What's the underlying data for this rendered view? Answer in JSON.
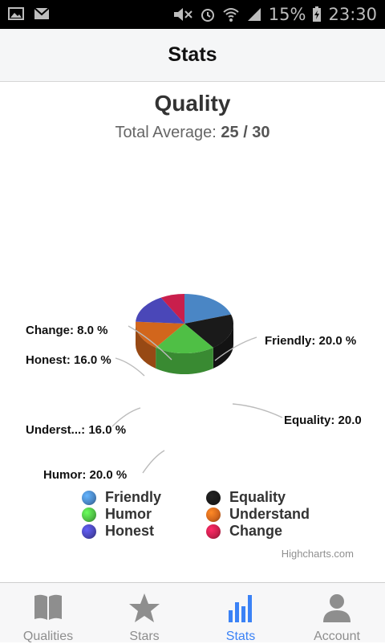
{
  "status_bar": {
    "battery": "15%",
    "time": "23:30"
  },
  "header": {
    "title": "Stats"
  },
  "chart_data": {
    "type": "pie",
    "title": "Quality",
    "subtitle_prefix": "Total Average: ",
    "subtitle_value": "25 / 30",
    "series": [
      {
        "name": "Friendly",
        "value": 20.0,
        "label": "Friendly: 20.0 %",
        "color": "#4a86c5"
      },
      {
        "name": "Equality",
        "value": 20.0,
        "label": "Equality: 20.0",
        "color": "#1a1a1a"
      },
      {
        "name": "Humor",
        "value": 20.0,
        "label": "Humor: 20.0 %",
        "color": "#4fbf45"
      },
      {
        "name": "Understand",
        "value": 16.0,
        "label": "Underst...: 16.0 %",
        "color": "#d2661c"
      },
      {
        "name": "Honest",
        "value": 16.0,
        "label": "Honest: 16.0 %",
        "color": "#4a47b8"
      },
      {
        "name": "Change",
        "value": 8.0,
        "label": "Change: 8.0 %",
        "color": "#c91f4c"
      }
    ],
    "credits": "Highcharts.com"
  },
  "tabs": [
    {
      "label": "Qualities",
      "icon": "book-icon",
      "active": false
    },
    {
      "label": "Stars",
      "icon": "star-icon",
      "active": false
    },
    {
      "label": "Stats",
      "icon": "bar-chart-icon",
      "active": true
    },
    {
      "label": "Account",
      "icon": "person-icon",
      "active": false
    }
  ]
}
